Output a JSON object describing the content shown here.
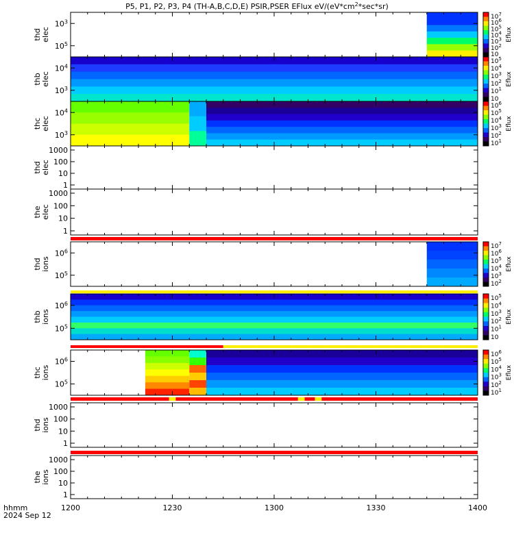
{
  "title": "P5, P1, P2, P3, P4 (TH-A,B,C,D,E) PSIR,PSER EFlux eV/(eV*cm",
  "title_sup": "2",
  "title_end": "*sec*sr)",
  "x_axis": {
    "ticks": [
      "1200",
      "1230",
      "1300",
      "1330",
      "1400"
    ],
    "label_line1": "hhmm",
    "label_line2": "2024 Sep 12"
  },
  "colorbar_label": "Eflux",
  "chart_data": {
    "type": "heatmap",
    "x_range": [
      "12:00",
      "14:00"
    ],
    "panels": [
      {
        "ylabel": [
          "thd",
          "elec"
        ],
        "y_ticks": [
          "10",
          "10"
        ],
        "y_sup": [
          "3",
          "5"
        ],
        "spectrogram": [
          {
            "from": "13:45",
            "to": "14:00",
            "bands": [
              "#0033ff",
              "#0033ff",
              "#0077ff",
              "#00ccff",
              "#00ff66",
              "#99ff00",
              "#ffee00"
            ]
          }
        ],
        "colorbar": [
          "10",
          "10",
          "10",
          "10",
          "10",
          "10",
          "10"
        ],
        "colorbar_sup": [
          "7",
          "6",
          "5",
          "4",
          "3",
          "2",
          ""
        ]
      },
      {
        "ylabel": [
          "thb",
          "elec"
        ],
        "y_ticks": [
          "10",
          "10"
        ],
        "y_sup": [
          "4",
          "3"
        ],
        "spectrogram": [
          {
            "from": "12:00",
            "to": "14:00",
            "bands": [
              "#1800cc",
              "#1e3cff",
              "#0066ff",
              "#0099ff",
              "#00ccff",
              "#00e5cc"
            ]
          }
        ],
        "colorbar": [
          "10",
          "10",
          "10",
          "10",
          "10",
          "10"
        ],
        "colorbar_sup": [
          "5",
          "4",
          "3",
          "2",
          "1",
          ""
        ]
      },
      {
        "ylabel": [
          "thc",
          "elec"
        ],
        "y_ticks": [
          "10",
          "10"
        ],
        "y_sup": [
          "4",
          "3"
        ],
        "spectrogram": [
          {
            "from": "12:00",
            "to": "12:35",
            "bands": [
              "#66ff00",
              "#99ff00",
              "#ccff00",
              "#ffff00"
            ]
          },
          {
            "from": "12:35",
            "to": "12:40",
            "bands": [
              "#00aaff",
              "#00ccff",
              "#00ff99"
            ]
          },
          {
            "from": "12:40",
            "to": "14:00",
            "bands": [
              "#330066",
              "#1a0099",
              "#2200cc",
              "#0033ff",
              "#0066ff",
              "#0099ff",
              "#00ccff"
            ]
          }
        ],
        "colorbar": [
          "10",
          "10",
          "10",
          "10",
          "10",
          "10"
        ],
        "colorbar_sup": [
          "6",
          "5",
          "4",
          "3",
          "2",
          "1"
        ]
      },
      {
        "ylabel": [
          "thd",
          "elec"
        ],
        "y_ticks": [
          "1000",
          "100",
          "10",
          "1"
        ],
        "spectrogram": []
      },
      {
        "ylabel": [
          "the",
          "elec"
        ],
        "y_ticks": [
          "1000",
          "100",
          "10",
          "1"
        ],
        "spectrogram": []
      },
      {
        "ylabel": [
          "thd",
          "ions"
        ],
        "y_ticks": [
          "10",
          "10"
        ],
        "y_sup": [
          "6",
          "5"
        ],
        "spectrogram": [
          {
            "from": "13:45",
            "to": "14:00",
            "bands": [
              "#0033ff",
              "#0044ff",
              "#0066ff",
              "#0088ff",
              "#00aaff"
            ]
          }
        ],
        "colorbar": [
          "10",
          "10",
          "10",
          "10",
          "10",
          "10"
        ],
        "colorbar_sup": [
          "7",
          "6",
          "5",
          "4",
          "3",
          "2"
        ]
      },
      {
        "ylabel": [
          "thb",
          "ions"
        ],
        "y_ticks": [
          "10",
          "10"
        ],
        "y_sup": [
          "6",
          "5"
        ],
        "spectrogram": [
          {
            "from": "12:00",
            "to": "14:00",
            "bands": [
              "#1800cc",
              "#0033ff",
              "#0066ff",
              "#0099ff",
              "#00ccff",
              "#33ff66",
              "#00ddcc",
              "#00aaff"
            ]
          }
        ],
        "colorbar": [
          "10",
          "10",
          "10",
          "10",
          "10",
          "10"
        ],
        "colorbar_sup": [
          "5",
          "4",
          "3",
          "2",
          "1",
          ""
        ]
      },
      {
        "ylabel": [
          "thc",
          "ions"
        ],
        "y_ticks": [
          "10",
          "10"
        ],
        "y_sup": [
          "6",
          "5"
        ],
        "spectrogram": [
          {
            "from": "12:22",
            "to": "12:35",
            "bands": [
              "#66ff00",
              "#88ff00",
              "#ccff00",
              "#ffff00",
              "#ffcc00",
              "#ff8800",
              "#ff2200"
            ]
          },
          {
            "from": "12:35",
            "to": "12:40",
            "bands": [
              "#00ffcc",
              "#33ff00",
              "#ff6600",
              "#ffcc00",
              "#ff4400",
              "#ffbb00"
            ]
          },
          {
            "from": "12:40",
            "to": "14:00",
            "bands": [
              "#1a0099",
              "#2200cc",
              "#0033ff",
              "#0066ff",
              "#0099ff",
              "#00ccff"
            ]
          }
        ],
        "colorbar": [
          "10",
          "10",
          "10",
          "10",
          "10",
          "10"
        ],
        "colorbar_sup": [
          "6",
          "5",
          "4",
          "3",
          "2",
          "1"
        ]
      },
      {
        "ylabel": [
          "thd",
          "ions"
        ],
        "y_ticks": [
          "1000",
          "100",
          "10",
          "1"
        ],
        "spectrogram": []
      },
      {
        "ylabel": [
          "the",
          "ions"
        ],
        "y_ticks": [
          "1000",
          "100",
          "10",
          "1"
        ],
        "spectrogram": []
      }
    ]
  }
}
